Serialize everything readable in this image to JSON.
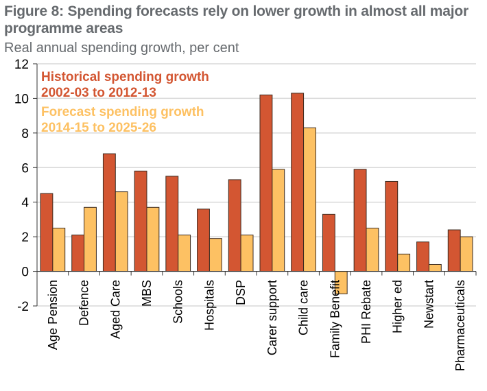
{
  "chart_data": {
    "type": "bar",
    "title": "Figure 8: Spending forecasts rely on lower growth in almost all major programme areas",
    "subtitle": "Real annual spending growth, per cent",
    "xlabel": "",
    "ylabel": "Real annual spending growth, per cent",
    "ylim": [
      -2,
      12
    ],
    "yticks": [
      -2,
      0,
      2,
      4,
      6,
      8,
      10,
      12
    ],
    "ytick_labels": [
      "-2",
      "0",
      "2",
      "4",
      "6",
      "8",
      "10",
      "12"
    ],
    "grid": true,
    "legend_position": "top-left",
    "categories": [
      "Age Pension",
      "Defence",
      "Aged Care",
      "MBS",
      "Schools",
      "Hospitals",
      "DSP",
      "Carer support",
      "Child care",
      "Family Benefit",
      "PHI Rebate",
      "Higher ed",
      "Newstart",
      "Pharmaceuticals"
    ],
    "series": [
      {
        "name": "Historical spending growth",
        "legend_line2": "2002-03 to 2012-13",
        "color": "#d35632",
        "values": [
          4.5,
          2.1,
          6.8,
          5.8,
          5.5,
          3.6,
          5.3,
          10.2,
          10.3,
          3.3,
          5.9,
          5.2,
          1.7,
          2.4
        ]
      },
      {
        "name": "Forecast spending growth",
        "legend_line2": "2014-15 to 2025-26",
        "color": "#fdc163",
        "values": [
          2.5,
          3.7,
          4.6,
          3.7,
          2.1,
          1.9,
          2.1,
          5.9,
          8.3,
          -1.3,
          2.5,
          1.0,
          0.4,
          2.0
        ]
      }
    ]
  }
}
